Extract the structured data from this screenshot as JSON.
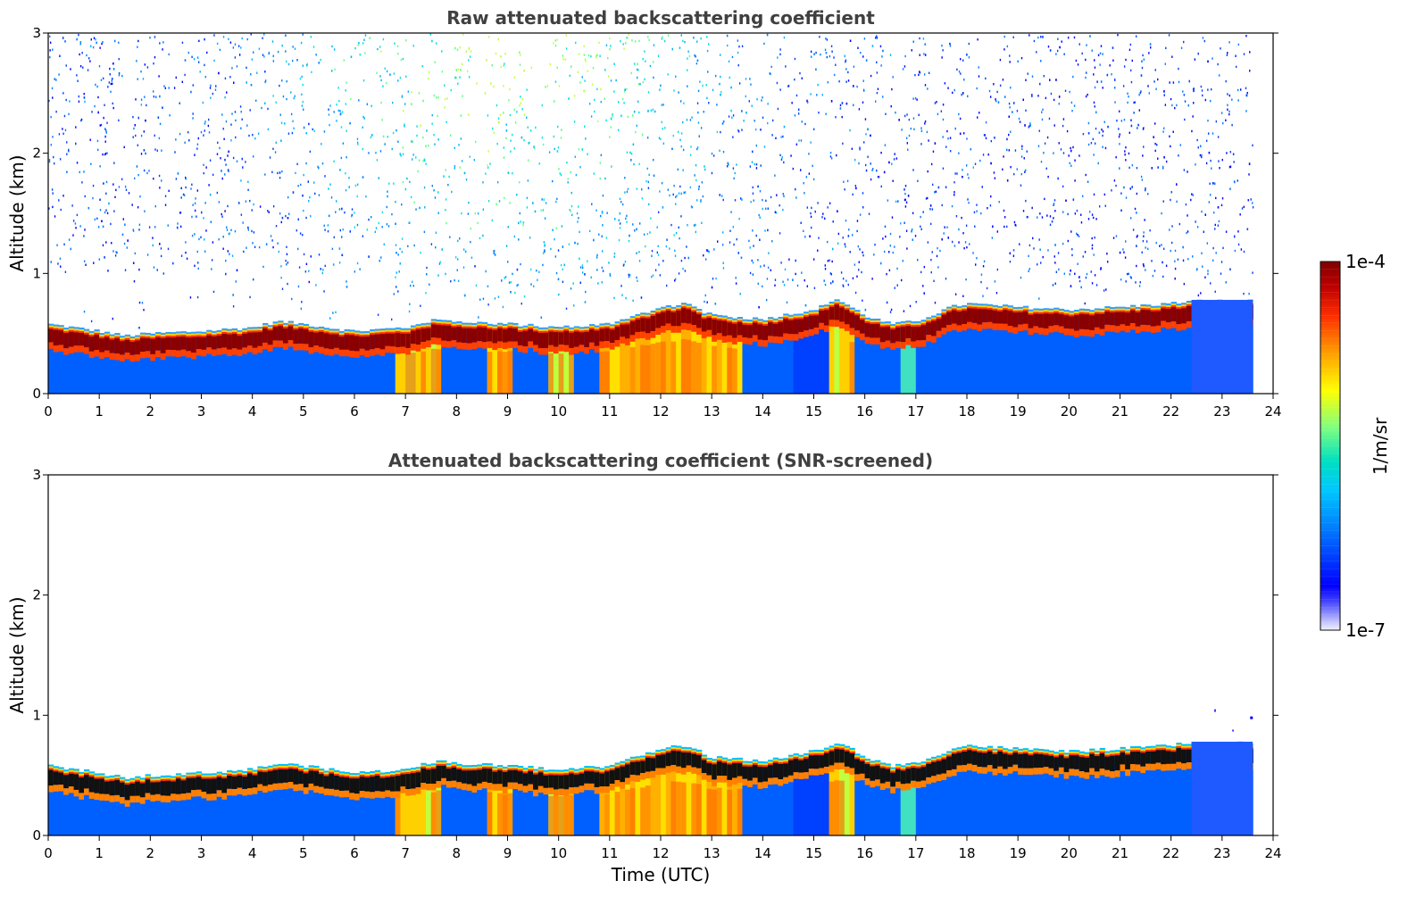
{
  "chart_data": [
    {
      "type": "heatmap",
      "title": "Raw attenuated backscattering coefficient",
      "xlabel": "",
      "ylabel": "Altitude (km)",
      "xlim": [
        0,
        24
      ],
      "ylim": [
        0,
        3
      ],
      "x_ticks": [
        "0",
        "1",
        "2",
        "3",
        "4",
        "5",
        "6",
        "7",
        "8",
        "9",
        "10",
        "11",
        "12",
        "13",
        "14",
        "15",
        "16",
        "17",
        "18",
        "19",
        "20",
        "21",
        "22",
        "23",
        "24"
      ],
      "y_ticks": [
        "0",
        "1",
        "2",
        "3"
      ],
      "data_end_hour": 23.6,
      "layer_top_km": [
        [
          0,
          0.58
        ],
        [
          1,
          0.52
        ],
        [
          1.5,
          0.48
        ],
        [
          2,
          0.5
        ],
        [
          3,
          0.52
        ],
        [
          4,
          0.55
        ],
        [
          4.5,
          0.6
        ],
        [
          5,
          0.58
        ],
        [
          6,
          0.52
        ],
        [
          7,
          0.55
        ],
        [
          7.7,
          0.63
        ],
        [
          8,
          0.6
        ],
        [
          9,
          0.58
        ],
        [
          10,
          0.55
        ],
        [
          11,
          0.58
        ],
        [
          11.5,
          0.65
        ],
        [
          12,
          0.72
        ],
        [
          12.5,
          0.75
        ],
        [
          13,
          0.65
        ],
        [
          14,
          0.62
        ],
        [
          15,
          0.7
        ],
        [
          15.5,
          0.78
        ],
        [
          16,
          0.65
        ],
        [
          16.5,
          0.58
        ],
        [
          17,
          0.6
        ],
        [
          17.7,
          0.72
        ],
        [
          18,
          0.75
        ],
        [
          19,
          0.72
        ],
        [
          20,
          0.7
        ],
        [
          21,
          0.72
        ],
        [
          22,
          0.75
        ],
        [
          22.4,
          0.77
        ]
      ],
      "background_noise": "high"
    },
    {
      "type": "heatmap",
      "title": "Attenuated backscattering coefficient (SNR-screened)",
      "xlabel": "Time (UTC)",
      "ylabel": "Altitude (km)",
      "xlim": [
        0,
        24
      ],
      "ylim": [
        0,
        3
      ],
      "x_ticks": [
        "0",
        "1",
        "2",
        "3",
        "4",
        "5",
        "6",
        "7",
        "8",
        "9",
        "10",
        "11",
        "12",
        "13",
        "14",
        "15",
        "16",
        "17",
        "18",
        "19",
        "20",
        "21",
        "22",
        "23",
        "24"
      ],
      "y_ticks": [
        "0",
        "1",
        "2",
        "3"
      ],
      "data_end_hour": 23.6,
      "layer_top_km": [
        [
          0,
          0.58
        ],
        [
          1,
          0.52
        ],
        [
          1.5,
          0.48
        ],
        [
          2,
          0.5
        ],
        [
          3,
          0.52
        ],
        [
          4,
          0.55
        ],
        [
          4.5,
          0.6
        ],
        [
          5,
          0.58
        ],
        [
          6,
          0.52
        ],
        [
          7,
          0.55
        ],
        [
          7.7,
          0.63
        ],
        [
          8,
          0.6
        ],
        [
          9,
          0.58
        ],
        [
          10,
          0.55
        ],
        [
          11,
          0.58
        ],
        [
          11.5,
          0.65
        ],
        [
          12,
          0.72
        ],
        [
          12.5,
          0.75
        ],
        [
          13,
          0.65
        ],
        [
          14,
          0.62
        ],
        [
          15,
          0.7
        ],
        [
          15.5,
          0.78
        ],
        [
          16,
          0.65
        ],
        [
          16.5,
          0.58
        ],
        [
          17,
          0.6
        ],
        [
          17.7,
          0.72
        ],
        [
          18,
          0.75
        ],
        [
          19,
          0.72
        ],
        [
          20,
          0.7
        ],
        [
          21,
          0.72
        ],
        [
          22,
          0.75
        ],
        [
          22.4,
          0.77
        ]
      ],
      "background_noise": "none"
    }
  ],
  "colorbar": {
    "max_label": "1e-4",
    "min_label": "1e-7",
    "unit_label": "1/m/sr",
    "colormap": [
      "#f0f0ff",
      "#0000ff",
      "#00a0ff",
      "#00e0e0",
      "#80ff80",
      "#ffff00",
      "#ffa000",
      "#ff2000",
      "#800000"
    ]
  }
}
